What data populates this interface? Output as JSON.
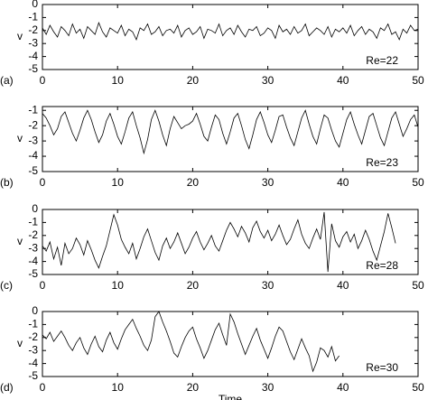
{
  "chart_data": [
    {
      "type": "line",
      "panel_label": "(a)",
      "y_label": "v",
      "annotation": "Re=22",
      "color": "#000000",
      "xlim": [
        0,
        50
      ],
      "xticks": [
        0,
        10,
        20,
        30,
        40,
        50
      ],
      "ylim": [
        -5,
        0
      ],
      "yticks": [
        0,
        -1,
        -2,
        -3,
        -4,
        -5
      ],
      "x": [
        0,
        0.5,
        1,
        1.5,
        2,
        2.5,
        3,
        3.5,
        4,
        4.5,
        5,
        5.5,
        6,
        6.5,
        7,
        7.5,
        8,
        8.5,
        9,
        9.5,
        10,
        10.5,
        11,
        11.5,
        12,
        12.5,
        13,
        13.5,
        14,
        14.5,
        15,
        15.5,
        16,
        16.5,
        17,
        17.5,
        18,
        18.5,
        19,
        19.5,
        20,
        20.5,
        21,
        21.5,
        22,
        22.5,
        23,
        23.5,
        24,
        24.5,
        25,
        25.5,
        26,
        26.5,
        27,
        27.5,
        28,
        28.5,
        29,
        29.5,
        30,
        30.5,
        31,
        31.5,
        32,
        32.5,
        33,
        33.5,
        34,
        34.5,
        35,
        35.5,
        36,
        36.5,
        37,
        37.5,
        38,
        38.5,
        39,
        39.5,
        40,
        40.5,
        41,
        41.5,
        42,
        42.5,
        43,
        43.5,
        44,
        44.5,
        45,
        45.5,
        46,
        46.5,
        47,
        47.5,
        48,
        48.5,
        49,
        49.5,
        50
      ],
      "values": [
        -1.8,
        -2.3,
        -1.6,
        -2.1,
        -2.5,
        -1.7,
        -2.0,
        -2.4,
        -1.5,
        -2.2,
        -1.9,
        -2.6,
        -1.7,
        -2.0,
        -2.3,
        -1.4,
        -2.1,
        -2.5,
        -1.8,
        -2.0,
        -2.2,
        -1.6,
        -2.4,
        -1.9,
        -2.1,
        -2.7,
        -1.8,
        -2.0,
        -1.5,
        -2.3,
        -2.1,
        -1.7,
        -2.4,
        -2.0,
        -1.9,
        -2.2,
        -1.6,
        -2.5,
        -2.0,
        -1.8,
        -2.3,
        -2.1,
        -1.7,
        -2.6,
        -1.9,
        -2.0,
        -2.2,
        -1.5,
        -2.4,
        -2.0,
        -1.8,
        -2.3,
        -1.6,
        -2.1,
        -2.5,
        -1.9,
        -2.0,
        -1.7,
        -2.4,
        -2.2,
        -1.8,
        -2.0,
        -2.6,
        -1.6,
        -2.1,
        -1.9,
        -2.3,
        -1.7,
        -2.2,
        -2.0,
        -1.5,
        -2.4,
        -2.1,
        -1.8,
        -2.0,
        -2.3,
        -1.7,
        -2.5,
        -1.9,
        -2.1,
        -1.8,
        -2.2,
        -1.6,
        -2.4,
        -2.0,
        -1.7,
        -2.3,
        -1.9,
        -2.1,
        -2.6,
        -1.8,
        -2.0,
        -1.5,
        -2.3,
        -2.1,
        -2.7,
        -1.9,
        -2.2,
        -1.6,
        -2.0,
        -1.9
      ]
    },
    {
      "type": "line",
      "panel_label": "(b)",
      "y_label": "v",
      "annotation": "Re=23",
      "color": "#000000",
      "xlim": [
        0,
        50
      ],
      "xticks": [
        0,
        10,
        20,
        30,
        40,
        50
      ],
      "ylim": [
        -5,
        -0.75
      ],
      "yticks": [
        -1,
        -2,
        -3,
        -4,
        -5
      ],
      "x": [
        0,
        0.5,
        1,
        1.5,
        2,
        2.5,
        3,
        3.5,
        4,
        4.5,
        5,
        5.5,
        6,
        6.5,
        7,
        7.5,
        8,
        8.5,
        9,
        9.5,
        10,
        10.5,
        11,
        11.5,
        12,
        12.5,
        13,
        13.5,
        14,
        14.5,
        15,
        15.5,
        16,
        16.5,
        17,
        17.5,
        18,
        18.5,
        19,
        19.5,
        20,
        20.5,
        21,
        21.5,
        22,
        22.5,
        23,
        23.5,
        24,
        24.5,
        25,
        25.5,
        26,
        26.5,
        27,
        27.5,
        28,
        28.5,
        29,
        29.5,
        30,
        30.5,
        31,
        31.5,
        32,
        32.5,
        33,
        33.5,
        34,
        34.5,
        35,
        35.5,
        36,
        36.5,
        37,
        37.5,
        38,
        38.5,
        39,
        39.5,
        40,
        40.5,
        41,
        41.5,
        42,
        42.5,
        43,
        43.5,
        44,
        44.5,
        45,
        45.5,
        46,
        46.5,
        47,
        47.5,
        48,
        48.5,
        49,
        49.5,
        50
      ],
      "values": [
        -1.2,
        -1.5,
        -2.0,
        -2.6,
        -2.2,
        -1.4,
        -1.1,
        -1.8,
        -2.5,
        -3.0,
        -2.3,
        -1.5,
        -1.0,
        -1.6,
        -2.4,
        -3.1,
        -2.6,
        -1.7,
        -1.2,
        -1.9,
        -2.7,
        -3.2,
        -2.4,
        -1.5,
        -1.1,
        -2.0,
        -2.8,
        -3.8,
        -2.9,
        -1.6,
        -1.0,
        -1.7,
        -2.6,
        -3.3,
        -2.2,
        -1.4,
        -1.8,
        -2.2,
        -2.0,
        -1.9,
        -1.7,
        -1.2,
        -1.9,
        -2.7,
        -3.0,
        -2.1,
        -1.3,
        -1.6,
        -2.5,
        -3.2,
        -2.4,
        -1.5,
        -1.2,
        -2.0,
        -2.9,
        -3.5,
        -2.6,
        -1.6,
        -1.1,
        -1.8,
        -2.6,
        -3.1,
        -2.3,
        -1.4,
        -1.3,
        -2.1,
        -2.8,
        -3.3,
        -2.4,
        -1.5,
        -1.0,
        -1.9,
        -2.7,
        -3.2,
        -2.2,
        -1.3,
        -1.5,
        -2.3,
        -3.0,
        -3.4,
        -2.5,
        -1.6,
        -1.1,
        -1.9,
        -2.6,
        -3.2,
        -2.3,
        -1.4,
        -1.2,
        -2.0,
        -2.8,
        -3.3,
        -2.4,
        -1.5,
        -1.1,
        -1.9,
        -2.7,
        -2.2,
        -1.6,
        -1.3,
        -2.1
      ]
    },
    {
      "type": "line",
      "panel_label": "(c)",
      "y_label": "v",
      "annotation": "Re=28",
      "color": "#000000",
      "xlim": [
        0,
        50
      ],
      "xticks": [
        0,
        10,
        20,
        30,
        40,
        50
      ],
      "ylim": [
        -5,
        0
      ],
      "yticks": [
        0,
        -1,
        -2,
        -3,
        -4,
        -5
      ],
      "x": [
        0,
        0.5,
        1,
        1.5,
        2,
        2.5,
        3,
        3.5,
        4,
        4.5,
        5,
        5.5,
        6,
        6.5,
        7,
        7.5,
        8,
        8.5,
        9,
        9.5,
        10,
        10.5,
        11,
        11.5,
        12,
        12.5,
        13,
        13.5,
        14,
        14.5,
        15,
        15.5,
        16,
        16.5,
        17,
        17.5,
        18,
        18.5,
        19,
        19.5,
        20,
        20.5,
        21,
        21.5,
        22,
        22.5,
        23,
        23.5,
        24,
        24.5,
        25,
        25.5,
        26,
        26.5,
        27,
        27.5,
        28,
        28.5,
        29,
        29.5,
        30,
        30.5,
        31,
        31.5,
        32,
        32.5,
        33,
        33.5,
        34,
        34.5,
        35,
        35.5,
        36,
        36.5,
        37,
        37.5,
        38,
        38.5,
        39,
        39.5,
        40,
        40.5,
        41,
        41.5,
        42,
        42.5,
        43,
        43.5,
        44,
        44.5,
        45,
        45.5,
        46,
        46.5,
        47
      ],
      "values": [
        -2.8,
        -3.2,
        -2.5,
        -3.8,
        -2.9,
        -4.3,
        -2.6,
        -3.4,
        -3.0,
        -2.2,
        -2.7,
        -3.5,
        -2.4,
        -3.1,
        -3.9,
        -4.5,
        -3.6,
        -2.8,
        -1.6,
        -0.4,
        -1.2,
        -2.3,
        -2.9,
        -3.4,
        -2.6,
        -3.8,
        -3.0,
        -2.1,
        -1.5,
        -2.4,
        -3.3,
        -3.9,
        -2.8,
        -2.2,
        -3.0,
        -2.5,
        -1.8,
        -2.6,
        -3.4,
        -2.9,
        -2.2,
        -1.7,
        -2.5,
        -3.1,
        -2.6,
        -2.0,
        -2.8,
        -3.2,
        -2.4,
        -1.6,
        -1.0,
        -1.5,
        -2.1,
        -1.3,
        -1.8,
        -2.5,
        -1.4,
        -0.9,
        -1.7,
        -2.2,
        -1.6,
        -2.4,
        -1.9,
        -1.2,
        -2.0,
        -2.7,
        -2.3,
        -1.5,
        -0.8,
        -1.9,
        -2.6,
        -3.0,
        -2.2,
        -1.5,
        -2.3,
        -0.2,
        -4.8,
        -1.1,
        -2.4,
        -2.9,
        -2.1,
        -1.7,
        -2.5,
        -1.9,
        -3.0,
        -2.4,
        -1.6,
        -2.3,
        -3.2,
        -3.9,
        -2.8,
        -1.7,
        -0.3,
        -1.4,
        -2.6
      ]
    },
    {
      "type": "line",
      "panel_label": "(d)",
      "y_label": "v",
      "annotation": "Re=30",
      "x_label": "Time",
      "color": "#000000",
      "xlim": [
        0,
        50
      ],
      "xticks": [
        0,
        10,
        20,
        30,
        40,
        50
      ],
      "ylim": [
        -5,
        0
      ],
      "yticks": [
        0,
        -1,
        -2,
        -3,
        -4,
        -5
      ],
      "x": [
        0,
        0.5,
        1,
        1.5,
        2,
        2.5,
        3,
        3.5,
        4,
        4.5,
        5,
        5.5,
        6,
        6.5,
        7,
        7.5,
        8,
        8.5,
        9,
        9.5,
        10,
        10.5,
        11,
        11.5,
        12,
        12.5,
        13,
        13.5,
        14,
        14.5,
        15,
        15.5,
        16,
        16.5,
        17,
        17.5,
        18,
        18.5,
        19,
        19.5,
        20,
        20.5,
        21,
        21.5,
        22,
        22.5,
        23,
        23.5,
        24,
        24.5,
        25,
        25.5,
        26,
        26.5,
        27,
        27.5,
        28,
        28.5,
        29,
        29.5,
        30,
        30.5,
        31,
        31.5,
        32,
        32.5,
        33,
        33.5,
        34,
        34.5,
        35,
        35.5,
        36,
        36.5,
        37,
        37.5,
        38,
        38.5,
        39,
        39.5
      ],
      "values": [
        -1.8,
        -2.1,
        -1.6,
        -2.3,
        -1.9,
        -1.5,
        -2.0,
        -2.6,
        -3.0,
        -2.4,
        -2.0,
        -2.8,
        -3.3,
        -2.5,
        -1.9,
        -2.7,
        -3.1,
        -2.2,
        -1.6,
        -2.4,
        -2.9,
        -2.1,
        -1.4,
        -1.0,
        -0.6,
        -1.3,
        -1.9,
        -2.6,
        -3.0,
        -2.2,
        -0.4,
        0.0,
        -0.8,
        -1.5,
        -2.3,
        -3.2,
        -3.5,
        -2.7,
        -2.0,
        -1.5,
        -1.2,
        -2.1,
        -2.8,
        -3.6,
        -3.0,
        -2.2,
        -1.4,
        -0.9,
        -1.8,
        -2.6,
        -0.2,
        -0.8,
        -1.7,
        -2.5,
        -3.3,
        -2.6,
        -1.9,
        -1.3,
        -2.2,
        -2.9,
        -3.6,
        -2.8,
        -1.9,
        -1.2,
        -1.5,
        -2.3,
        -3.1,
        -3.7,
        -2.9,
        -2.1,
        -2.8,
        -3.4,
        -4.6,
        -3.9,
        -2.8,
        -3.0,
        -3.5,
        -2.7,
        -3.8,
        -3.4
      ]
    }
  ]
}
